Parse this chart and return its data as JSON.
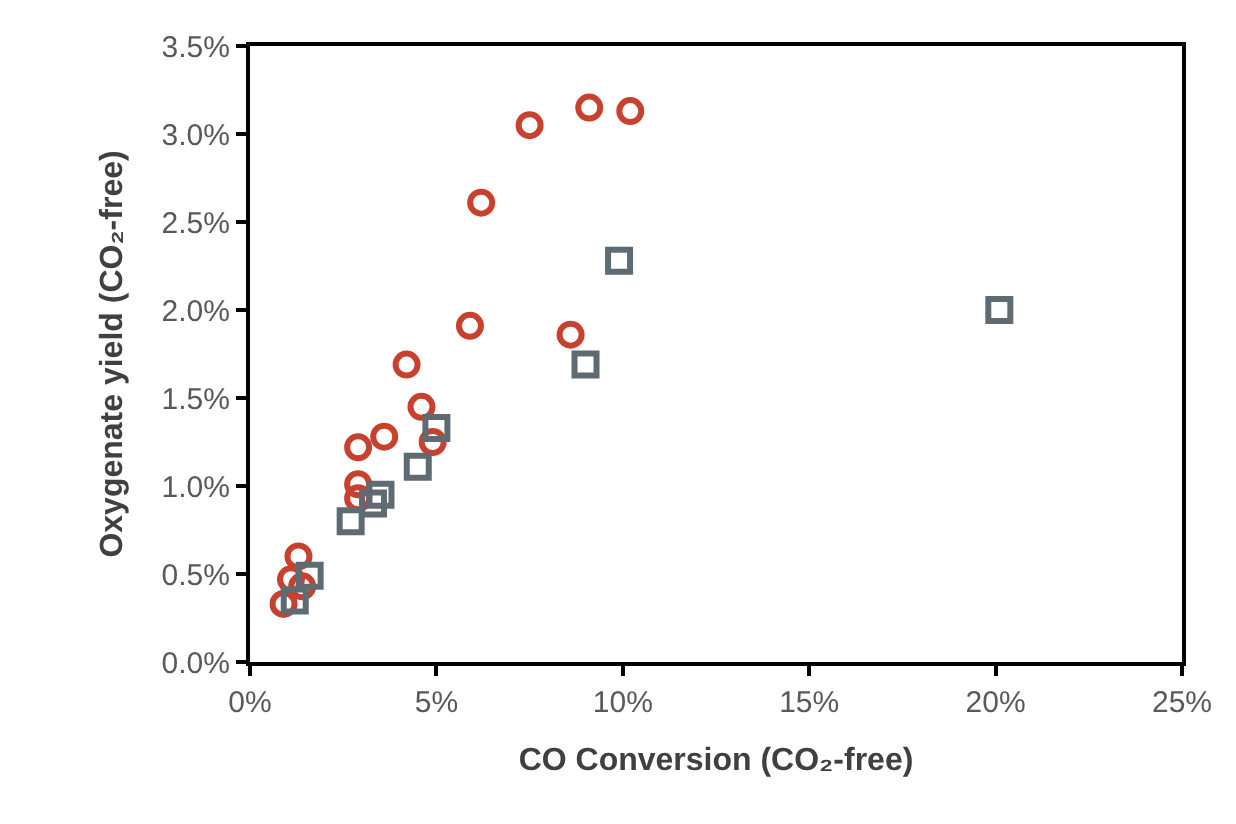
{
  "chart_data": {
    "type": "scatter",
    "xlabel": "CO Conversion (CO₂-free)",
    "ylabel": "Oxygenate yield (CO₂-free)",
    "xlim": [
      0,
      25
    ],
    "ylim": [
      0,
      3.5
    ],
    "xticks": [
      {
        "value": 0,
        "label": "0%"
      },
      {
        "value": 5,
        "label": "5%"
      },
      {
        "value": 10,
        "label": "10%"
      },
      {
        "value": 15,
        "label": "15%"
      },
      {
        "value": 20,
        "label": "20%"
      },
      {
        "value": 25,
        "label": "25%"
      }
    ],
    "yticks": [
      {
        "value": 0,
        "label": "0.0%"
      },
      {
        "value": 0.5,
        "label": "0.5%"
      },
      {
        "value": 1,
        "label": "1.0%"
      },
      {
        "value": 1.5,
        "label": "1.5%"
      },
      {
        "value": 2,
        "label": "2.0%"
      },
      {
        "value": 2.5,
        "label": "2.5%"
      },
      {
        "value": 3,
        "label": "3.0%"
      },
      {
        "value": 3.5,
        "label": "3.5%"
      }
    ],
    "series": [
      {
        "color": "#c8412f",
        "marker": "circle",
        "x": [
          0.9,
          1.1,
          1.3,
          1.4,
          2.9,
          2.9,
          2.9,
          3.6,
          4.2,
          4.6,
          4.9,
          5.9,
          6.2,
          7.5,
          9.1,
          10.2,
          8.6
        ],
        "values": [
          0.33,
          0.47,
          0.6,
          0.43,
          0.93,
          1.01,
          1.22,
          1.28,
          1.69,
          1.45,
          1.25,
          1.91,
          2.61,
          3.05,
          3.15,
          3.13,
          1.86
        ]
      },
      {
        "color": "#5f6b73",
        "marker": "square",
        "x": [
          1.2,
          1.6,
          2.7,
          3.3,
          3.5,
          4.5,
          5.0,
          9.0,
          9.9,
          20.1
        ],
        "values": [
          0.35,
          0.49,
          0.8,
          0.9,
          0.95,
          1.11,
          1.33,
          1.69,
          2.28,
          2.0
        ]
      }
    ]
  }
}
